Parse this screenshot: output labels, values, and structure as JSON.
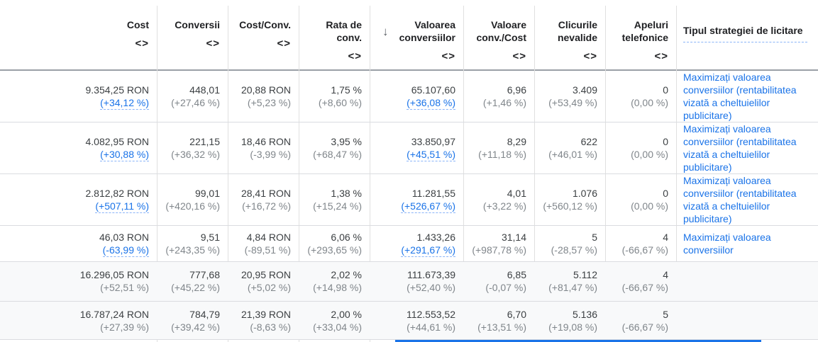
{
  "headers": {
    "cost": {
      "line1": "",
      "line2": "Cost",
      "arrows": "<>"
    },
    "conversions": {
      "line1": "",
      "line2": "Conversii",
      "arrows": "<>"
    },
    "cost_conv": {
      "line1": "",
      "line2": "Cost/Conv.",
      "arrows": "<>"
    },
    "conv_rate": {
      "line1": "Rata de",
      "line2": "conv.",
      "arrows": "<>"
    },
    "conv_value": {
      "line1": "Valoarea",
      "line2": "conversiilor",
      "arrows": "<>",
      "sort_icon": "↓"
    },
    "value_per_cost": {
      "line1": "Valoare",
      "line2": "conv./Cost",
      "arrows": "<>"
    },
    "invalid_clicks": {
      "line1": "Clicurile",
      "line2": "nevalide",
      "arrows": "<>"
    },
    "phone_calls": {
      "line1": "Apeluri",
      "line2": "telefonice",
      "arrows": "<>"
    },
    "strategy": {
      "label": "Tipul strategiei de licitare"
    }
  },
  "rows": [
    {
      "cost": "9.354,25 RON",
      "cost_delta": "(+34,12 %)",
      "conversions": "448,01",
      "conversions_delta": "(+27,46 %)",
      "cost_conv": "20,88 RON",
      "cost_conv_delta": "(+5,23 %)",
      "conv_rate": "1,75 %",
      "conv_rate_delta": "(+8,60 %)",
      "conv_value": "65.107,60",
      "conv_value_delta": "(+36,08 %)",
      "value_per_cost": "6,96",
      "value_per_cost_delta": "(+1,46 %)",
      "invalid_clicks": "3.409",
      "invalid_clicks_delta": "(+53,49 %)",
      "phone_calls": "0",
      "phone_calls_delta": "(0,00 %)",
      "strategy": "Maximizați valoarea conversiilor (rentabilitatea vizată a cheltuielilor publicitare)"
    },
    {
      "cost": "4.082,95 RON",
      "cost_delta": "(+30,88 %)",
      "conversions": "221,15",
      "conversions_delta": "(+36,32 %)",
      "cost_conv": "18,46 RON",
      "cost_conv_delta": "(-3,99 %)",
      "conv_rate": "3,95 %",
      "conv_rate_delta": "(+68,47 %)",
      "conv_value": "33.850,97",
      "conv_value_delta": "(+45,51 %)",
      "value_per_cost": "8,29",
      "value_per_cost_delta": "(+11,18 %)",
      "invalid_clicks": "622",
      "invalid_clicks_delta": "(+46,01 %)",
      "phone_calls": "0",
      "phone_calls_delta": "(0,00 %)",
      "strategy": "Maximizați valoarea conversiilor (rentabilitatea vizată a cheltuielilor publicitare)"
    },
    {
      "cost": "2.812,82 RON",
      "cost_delta": "(+507,11 %)",
      "conversions": "99,01",
      "conversions_delta": "(+420,16 %)",
      "cost_conv": "28,41 RON",
      "cost_conv_delta": "(+16,72 %)",
      "conv_rate": "1,38 %",
      "conv_rate_delta": "(+15,24 %)",
      "conv_value": "11.281,55",
      "conv_value_delta": "(+526,67 %)",
      "value_per_cost": "4,01",
      "value_per_cost_delta": "(+3,22 %)",
      "invalid_clicks": "1.076",
      "invalid_clicks_delta": "(+560,12 %)",
      "phone_calls": "0",
      "phone_calls_delta": "(0,00 %)",
      "strategy": "Maximizați valoarea conversiilor (rentabilitatea vizată a cheltuielilor publicitare)"
    },
    {
      "cost": "46,03 RON",
      "cost_delta": "(-63,99 %)",
      "conversions": "9,51",
      "conversions_delta": "(+243,35 %)",
      "cost_conv": "4,84 RON",
      "cost_conv_delta": "(-89,51 %)",
      "conv_rate": "6,06 %",
      "conv_rate_delta": "(+293,65 %)",
      "conv_value": "1.433,26",
      "conv_value_delta": "(+291,67 %)",
      "value_per_cost": "31,14",
      "value_per_cost_delta": "(+987,78 %)",
      "invalid_clicks": "5",
      "invalid_clicks_delta": "(-28,57 %)",
      "phone_calls": "4",
      "phone_calls_delta": "(-66,67 %)",
      "strategy": "Maximizați valoarea conversiilor"
    }
  ],
  "totals": [
    {
      "cost": "16.296,05 RON",
      "cost_delta": "(+52,51 %)",
      "conversions": "777,68",
      "conversions_delta": "(+45,22 %)",
      "cost_conv": "20,95 RON",
      "cost_conv_delta": "(+5,02 %)",
      "conv_rate": "2,02 %",
      "conv_rate_delta": "(+14,98 %)",
      "conv_value": "111.673,39",
      "conv_value_delta": "(+52,40 %)",
      "value_per_cost": "6,85",
      "value_per_cost_delta": "(-0,07 %)",
      "invalid_clicks": "5.112",
      "invalid_clicks_delta": "(+81,47 %)",
      "phone_calls": "4",
      "phone_calls_delta": "(-66,67 %)"
    },
    {
      "cost": "16.787,24 RON",
      "cost_delta": "(+27,39 %)",
      "conversions": "784,79",
      "conversions_delta": "(+39,42 %)",
      "cost_conv": "21,39 RON",
      "cost_conv_delta": "(-8,63 %)",
      "conv_rate": "2,00 %",
      "conv_rate_delta": "(+33,04 %)",
      "conv_value": "112.553,52",
      "conv_value_delta": "(+44,61 %)",
      "value_per_cost": "6,70",
      "value_per_cost_delta": "(+13,51 %)",
      "invalid_clicks": "5.136",
      "invalid_clicks_delta": "(+19,08 %)",
      "phone_calls": "5",
      "phone_calls_delta": "(-66,67 %)"
    }
  ],
  "colors": {
    "link": "#1a73e8",
    "text": "#3c4043",
    "muted": "#80868b",
    "border": "#dadce0",
    "total_bg": "#f8f9fa"
  }
}
